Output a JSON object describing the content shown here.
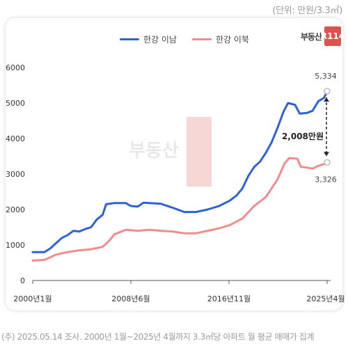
{
  "unit_note": "(단위: 만원/3.3㎡)",
  "logo": {
    "text": "부동산",
    "mark": "R114"
  },
  "legend": [
    {
      "label": "한강 이남",
      "color": "#2e62d4"
    },
    {
      "label": "한강 이북",
      "color": "#f08c8c"
    }
  ],
  "footer": "(주) 2025.05.14 조사. 2000년 1월~2025년 4월까지 3.3㎡당 아파트 월 평균 매매가 집계",
  "chart_data": {
    "type": "line",
    "x_ticks": [
      "2000년1월",
      "2008년6월",
      "2016년11월",
      "2025년4월"
    ],
    "ylim": [
      0,
      6000
    ],
    "y_ticks": [
      0,
      1000,
      2000,
      3000,
      4000,
      5000,
      6000
    ],
    "grid": false,
    "series": [
      {
        "name": "한강 이남",
        "color": "#2e62d4",
        "points": [
          [
            2000.0,
            800
          ],
          [
            2001.0,
            800
          ],
          [
            2001.5,
            900
          ],
          [
            2002.0,
            1050
          ],
          [
            2002.5,
            1200
          ],
          [
            2003.0,
            1280
          ],
          [
            2003.5,
            1400
          ],
          [
            2004.0,
            1380
          ],
          [
            2004.5,
            1450
          ],
          [
            2005.0,
            1500
          ],
          [
            2005.5,
            1720
          ],
          [
            2006.0,
            1850
          ],
          [
            2006.3,
            2150
          ],
          [
            2007.0,
            2180
          ],
          [
            2008.0,
            2180
          ],
          [
            2008.4,
            2100
          ],
          [
            2009.0,
            2080
          ],
          [
            2009.5,
            2190
          ],
          [
            2010.0,
            2180
          ],
          [
            2011.0,
            2160
          ],
          [
            2012.0,
            2050
          ],
          [
            2013.0,
            1930
          ],
          [
            2014.0,
            1930
          ],
          [
            2015.0,
            2000
          ],
          [
            2016.0,
            2100
          ],
          [
            2016.9,
            2250
          ],
          [
            2017.5,
            2400
          ],
          [
            2018.0,
            2600
          ],
          [
            2018.5,
            2950
          ],
          [
            2019.0,
            3200
          ],
          [
            2019.5,
            3350
          ],
          [
            2020.0,
            3600
          ],
          [
            2020.5,
            3900
          ],
          [
            2021.0,
            4300
          ],
          [
            2021.5,
            4750
          ],
          [
            2021.9,
            5000
          ],
          [
            2022.5,
            4950
          ],
          [
            2022.9,
            4700
          ],
          [
            2023.5,
            4720
          ],
          [
            2024.0,
            4780
          ],
          [
            2024.5,
            5050
          ],
          [
            2025.0,
            5150
          ],
          [
            2025.25,
            5334
          ]
        ]
      },
      {
        "name": "한강 이북",
        "color": "#f08c8c",
        "points": [
          [
            2000.0,
            560
          ],
          [
            2001.0,
            580
          ],
          [
            2001.5,
            650
          ],
          [
            2002.0,
            730
          ],
          [
            2003.0,
            800
          ],
          [
            2004.0,
            850
          ],
          [
            2005.0,
            880
          ],
          [
            2006.0,
            950
          ],
          [
            2006.5,
            1100
          ],
          [
            2007.0,
            1300
          ],
          [
            2008.0,
            1430
          ],
          [
            2009.0,
            1400
          ],
          [
            2010.0,
            1430
          ],
          [
            2011.0,
            1400
          ],
          [
            2012.0,
            1380
          ],
          [
            2013.0,
            1330
          ],
          [
            2014.0,
            1330
          ],
          [
            2015.0,
            1400
          ],
          [
            2016.0,
            1470
          ],
          [
            2016.9,
            1560
          ],
          [
            2018.0,
            1750
          ],
          [
            2019.0,
            2100
          ],
          [
            2020.0,
            2350
          ],
          [
            2020.5,
            2600
          ],
          [
            2021.0,
            2850
          ],
          [
            2021.6,
            3300
          ],
          [
            2022.0,
            3450
          ],
          [
            2022.7,
            3430
          ],
          [
            2023.0,
            3200
          ],
          [
            2023.7,
            3170
          ],
          [
            2024.0,
            3150
          ],
          [
            2024.5,
            3230
          ],
          [
            2025.0,
            3280
          ],
          [
            2025.25,
            3326
          ]
        ]
      }
    ],
    "annotations": {
      "end_value_south": "5,334",
      "end_value_north": "3,326",
      "gap_label": "2,008만원"
    }
  }
}
